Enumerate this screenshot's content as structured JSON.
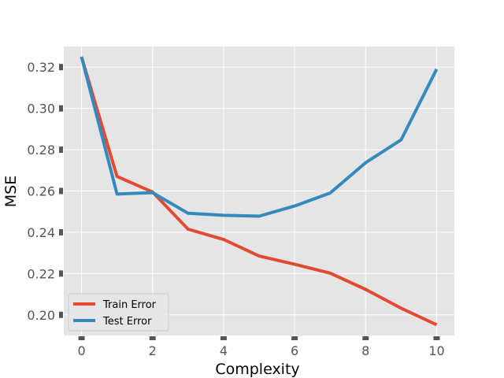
{
  "chart_data": {
    "type": "line",
    "xlabel": "Complexity",
    "ylabel": "MSE",
    "xlim": [
      -0.5,
      10.5
    ],
    "ylim": [
      0.19,
      0.33
    ],
    "x_ticks": [
      0,
      2,
      4,
      6,
      8,
      10
    ],
    "y_ticks": [
      0.2,
      0.22,
      0.24,
      0.26,
      0.28,
      0.3,
      0.32
    ],
    "x_tick_labels": [
      "0",
      "2",
      "4",
      "6",
      "8",
      "10"
    ],
    "y_tick_labels": [
      "0.20",
      "0.22",
      "0.24",
      "0.26",
      "0.28",
      "0.30",
      "0.32"
    ],
    "grid": true,
    "legend_position": "lower-left",
    "x": [
      0,
      1,
      2,
      3,
      4,
      5,
      6,
      7,
      8,
      9,
      10
    ],
    "series": [
      {
        "name": "Train Error",
        "color": "#E24A33",
        "values": [
          0.325,
          0.267,
          0.2595,
          0.2415,
          0.2365,
          0.2285,
          0.2245,
          0.2202,
          0.2123,
          0.2032,
          0.1952
        ]
      },
      {
        "name": "Test Error",
        "color": "#348ABD",
        "values": [
          0.325,
          0.2585,
          0.2592,
          0.2492,
          0.2482,
          0.2478,
          0.2527,
          0.259,
          0.2737,
          0.2848,
          0.319
        ]
      }
    ]
  }
}
